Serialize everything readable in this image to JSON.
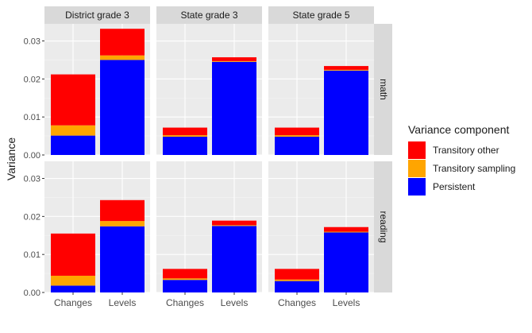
{
  "chart_data": {
    "type": "bar",
    "stacked": true,
    "facet_columns": [
      "District grade 3",
      "State grade 3",
      "State grade 5"
    ],
    "facet_rows": [
      "math",
      "reading"
    ],
    "categories": [
      "Changes",
      "Levels"
    ],
    "ylabel": "Variance",
    "xlabel": "",
    "ylim": [
      0,
      0.0345
    ],
    "y_ticks": [
      "0.00",
      "0.01",
      "0.02",
      "0.03"
    ],
    "grid": true,
    "legend": {
      "title": "Variance component",
      "placement": "right",
      "entries": [
        "Transitory other",
        "Transitory sampling",
        "Persistent"
      ]
    },
    "series_colors": {
      "Persistent": "#0000ff",
      "Transitory sampling": "#ffa500",
      "Transitory other": "#ff0000"
    },
    "panels": [
      {
        "column": "District grade 3",
        "row": "math",
        "series": [
          {
            "name": "Persistent",
            "values": [
              0.0051,
              0.025
            ]
          },
          {
            "name": "Transitory sampling",
            "values": [
              0.0027,
              0.0012
            ]
          },
          {
            "name": "Transitory other",
            "values": [
              0.0134,
              0.007
            ]
          }
        ]
      },
      {
        "column": "State grade 3",
        "row": "math",
        "series": [
          {
            "name": "Persistent",
            "values": [
              0.0048,
              0.0245
            ]
          },
          {
            "name": "Transitory sampling",
            "values": [
              0.0004,
              0.0002
            ]
          },
          {
            "name": "Transitory other",
            "values": [
              0.002,
              0.001
            ]
          }
        ]
      },
      {
        "column": "State grade 5",
        "row": "math",
        "series": [
          {
            "name": "Persistent",
            "values": [
              0.0048,
              0.0222
            ]
          },
          {
            "name": "Transitory sampling",
            "values": [
              0.0004,
              0.0002
            ]
          },
          {
            "name": "Transitory other",
            "values": [
              0.002,
              0.001
            ]
          }
        ]
      },
      {
        "column": "District grade 3",
        "row": "reading",
        "series": [
          {
            "name": "Persistent",
            "values": [
              0.0018,
              0.0174
            ]
          },
          {
            "name": "Transitory sampling",
            "values": [
              0.0026,
              0.0014
            ]
          },
          {
            "name": "Transitory other",
            "values": [
              0.0111,
              0.0055
            ]
          }
        ]
      },
      {
        "column": "State grade 3",
        "row": "reading",
        "series": [
          {
            "name": "Persistent",
            "values": [
              0.0033,
              0.0175
            ]
          },
          {
            "name": "Transitory sampling",
            "values": [
              0.0004,
              0.0002
            ]
          },
          {
            "name": "Transitory other",
            "values": [
              0.0025,
              0.0012
            ]
          }
        ]
      },
      {
        "column": "State grade 5",
        "row": "reading",
        "series": [
          {
            "name": "Persistent",
            "values": [
              0.003,
              0.0158
            ]
          },
          {
            "name": "Transitory sampling",
            "values": [
              0.0004,
              0.0002
            ]
          },
          {
            "name": "Transitory other",
            "values": [
              0.0028,
              0.0012
            ]
          }
        ]
      }
    ]
  }
}
